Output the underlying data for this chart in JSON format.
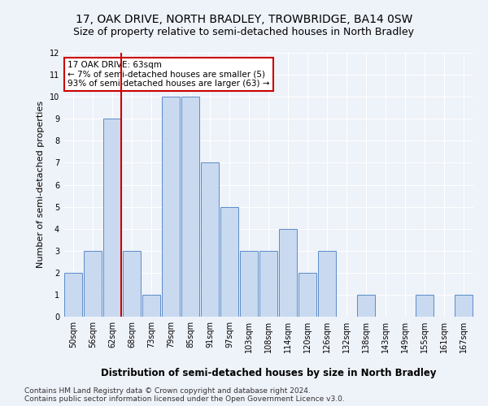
{
  "title": "17, OAK DRIVE, NORTH BRADLEY, TROWBRIDGE, BA14 0SW",
  "subtitle": "Size of property relative to semi-detached houses in North Bradley",
  "xlabel_dist": "Distribution of semi-detached houses by size in North Bradley",
  "ylabel": "Number of semi-detached properties",
  "categories": [
    "50sqm",
    "56sqm",
    "62sqm",
    "68sqm",
    "73sqm",
    "79sqm",
    "85sqm",
    "91sqm",
    "97sqm",
    "103sqm",
    "108sqm",
    "114sqm",
    "120sqm",
    "126sqm",
    "132sqm",
    "138sqm",
    "143sqm",
    "149sqm",
    "155sqm",
    "161sqm",
    "167sqm"
  ],
  "values": [
    2,
    3,
    9,
    3,
    1,
    10,
    10,
    7,
    5,
    3,
    3,
    4,
    2,
    3,
    0,
    1,
    0,
    0,
    1,
    0,
    1
  ],
  "bar_color": "#c9d9f0",
  "bar_edge_color": "#5b8cc8",
  "vline_bar_index": 2,
  "vline_color": "#cc0000",
  "annotation_title": "17 OAK DRIVE: 63sqm",
  "annotation_line1": "← 7% of semi-detached houses are smaller (5)",
  "annotation_line2": "93% of semi-detached houses are larger (63) →",
  "annotation_box_color": "#ffffff",
  "annotation_box_edge": "#cc0000",
  "ylim": [
    0,
    12
  ],
  "yticks": [
    0,
    1,
    2,
    3,
    4,
    5,
    6,
    7,
    8,
    9,
    10,
    11,
    12
  ],
  "footer1": "Contains HM Land Registry data © Crown copyright and database right 2024.",
  "footer2": "Contains public sector information licensed under the Open Government Licence v3.0.",
  "bg_color": "#eef2f9",
  "grid_color": "#ffffff",
  "title_fontsize": 10,
  "subtitle_fontsize": 9,
  "tick_fontsize": 7,
  "ylabel_fontsize": 8,
  "footer_fontsize": 6.5,
  "annotation_fontsize": 7.5,
  "xlabel_dist_fontsize": 8.5
}
